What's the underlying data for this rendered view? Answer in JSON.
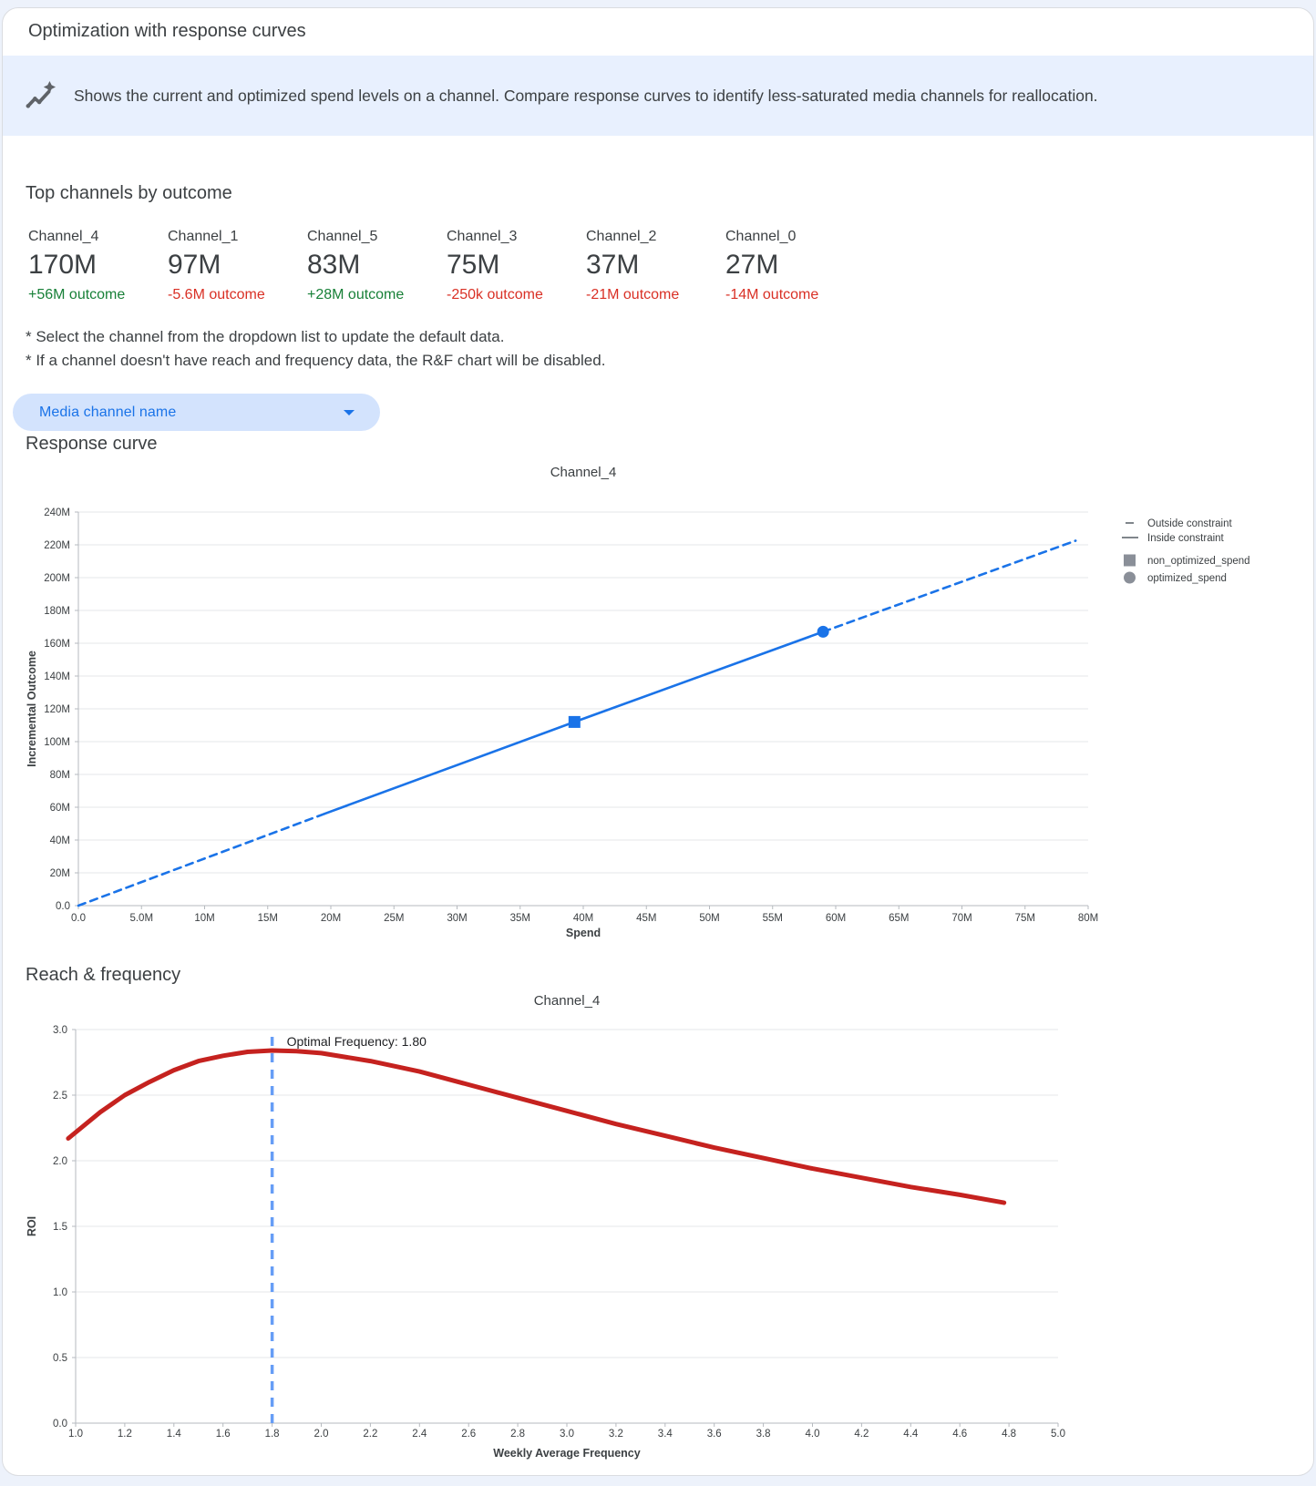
{
  "window": {
    "title": "Optimization with response curves"
  },
  "banner": {
    "icon": "insights-icon",
    "text": "Shows the current and optimized spend levels on a channel. Compare response curves to identify less-saturated media channels for reallocation.",
    "bg_color": "#e8f0fe"
  },
  "top_channels": {
    "heading": "Top channels by outcome",
    "channels": [
      {
        "name": "Channel_4",
        "value": "170M",
        "outcome": "+56M outcome",
        "direction": "positive"
      },
      {
        "name": "Channel_1",
        "value": "97M",
        "outcome": "-5.6M outcome",
        "direction": "negative"
      },
      {
        "name": "Channel_5",
        "value": "83M",
        "outcome": "+28M outcome",
        "direction": "positive"
      },
      {
        "name": "Channel_3",
        "value": "75M",
        "outcome": "-250k outcome",
        "direction": "negative"
      },
      {
        "name": "Channel_2",
        "value": "37M",
        "outcome": "-21M outcome",
        "direction": "negative"
      },
      {
        "name": "Channel_0",
        "value": "27M",
        "outcome": "-14M outcome",
        "direction": "negative"
      }
    ]
  },
  "notes": [
    "* Select the channel from the dropdown list to update the default data.",
    "* If a channel doesn't have reach and frequency data, the R&F chart will be disabled."
  ],
  "dropdown": {
    "label": "Media channel name"
  },
  "sections": {
    "response_curve": "Response curve",
    "reach_frequency": "Reach & frequency"
  },
  "colors": {
    "accent_blue": "#1a73e8",
    "positive_green": "#188038",
    "negative_red": "#d93025",
    "banner_bg": "#e8f0fe",
    "dropdown_bg": "#d3e3fd"
  },
  "chart_data": [
    {
      "type": "line",
      "title": "Channel_4",
      "xlabel": "Spend",
      "ylabel": "Incremental Outcome",
      "xlim": [
        0,
        80
      ],
      "ylim": [
        0,
        240
      ],
      "x_ticks": [
        0,
        5,
        10,
        15,
        20,
        25,
        30,
        35,
        40,
        45,
        50,
        55,
        60,
        65,
        70,
        75,
        80
      ],
      "x_tick_labels": [
        "0.0",
        "5.0M",
        "10M",
        "15M",
        "20M",
        "25M",
        "30M",
        "35M",
        "40M",
        "45M",
        "50M",
        "55M",
        "60M",
        "65M",
        "70M",
        "75M",
        "80M"
      ],
      "y_ticks": [
        0,
        20,
        40,
        60,
        80,
        100,
        120,
        140,
        160,
        180,
        200,
        220,
        240
      ],
      "y_tick_labels": [
        "0.0",
        "20M",
        "40M",
        "60M",
        "80M",
        "100M",
        "120M",
        "140M",
        "160M",
        "180M",
        "200M",
        "220M",
        "240M"
      ],
      "grid": "horizontal",
      "legend_position": "right",
      "series": [
        {
          "name": "response_curve",
          "color": "#1a73e8",
          "points": [
            [
              0,
              0
            ],
            [
              19.5,
              56
            ],
            [
              39.3,
              112
            ],
            [
              59,
              167
            ],
            [
              79,
              222.5
            ]
          ],
          "solid_range": [
            19.5,
            59
          ]
        }
      ],
      "markers": [
        {
          "label": "non_optimized_spend",
          "shape": "square",
          "x": 39.3,
          "y": 112,
          "color": "#1a73e8"
        },
        {
          "label": "optimized_spend",
          "shape": "circle",
          "x": 59,
          "y": 167,
          "color": "#1a73e8"
        }
      ],
      "legend": [
        {
          "label": "Outside constraint",
          "style": "dashed-line"
        },
        {
          "label": "Inside constraint",
          "style": "solid-line"
        },
        {
          "label": "non_optimized_spend",
          "style": "square"
        },
        {
          "label": "optimized_spend",
          "style": "circle"
        }
      ]
    },
    {
      "type": "line",
      "title": "Channel_4",
      "xlabel": "Weekly Average Frequency",
      "ylabel": "ROI",
      "xlim": [
        1.0,
        5.0
      ],
      "ylim": [
        0,
        3.0
      ],
      "x_ticks": [
        1.0,
        1.2,
        1.4,
        1.6,
        1.8,
        2.0,
        2.2,
        2.4,
        2.6,
        2.8,
        3.0,
        3.2,
        3.4,
        3.6,
        3.8,
        4.0,
        4.2,
        4.4,
        4.6,
        4.8,
        5.0
      ],
      "x_tick_labels": [
        "1.0",
        "1.2",
        "1.4",
        "1.6",
        "1.8",
        "2.0",
        "2.2",
        "2.4",
        "2.6",
        "2.8",
        "3.0",
        "3.2",
        "3.4",
        "3.6",
        "3.8",
        "4.0",
        "4.2",
        "4.4",
        "4.6",
        "4.8",
        "5.0"
      ],
      "y_ticks": [
        0,
        0.5,
        1.0,
        1.5,
        2.0,
        2.5,
        3.0
      ],
      "y_tick_labels": [
        "0.0",
        "0.5",
        "1.0",
        "1.5",
        "2.0",
        "2.5",
        "3.0"
      ],
      "grid": "horizontal",
      "series": [
        {
          "name": "roi_curve",
          "color": "#c5221f",
          "points": [
            [
              0.97,
              2.17
            ],
            [
              1.1,
              2.37
            ],
            [
              1.2,
              2.5
            ],
            [
              1.3,
              2.6
            ],
            [
              1.4,
              2.69
            ],
            [
              1.5,
              2.76
            ],
            [
              1.6,
              2.8
            ],
            [
              1.7,
              2.83
            ],
            [
              1.8,
              2.84
            ],
            [
              1.9,
              2.835
            ],
            [
              2.0,
              2.82
            ],
            [
              2.2,
              2.76
            ],
            [
              2.4,
              2.68
            ],
            [
              2.6,
              2.58
            ],
            [
              2.8,
              2.48
            ],
            [
              3.0,
              2.38
            ],
            [
              3.2,
              2.28
            ],
            [
              3.4,
              2.19
            ],
            [
              3.6,
              2.1
            ],
            [
              3.8,
              2.02
            ],
            [
              4.0,
              1.94
            ],
            [
              4.2,
              1.87
            ],
            [
              4.4,
              1.8
            ],
            [
              4.6,
              1.74
            ],
            [
              4.78,
              1.68
            ]
          ]
        }
      ],
      "optimal_frequency": {
        "value": 1.8,
        "label": "Optimal Frequency: 1.80",
        "line_color": "#669df6"
      }
    }
  ]
}
